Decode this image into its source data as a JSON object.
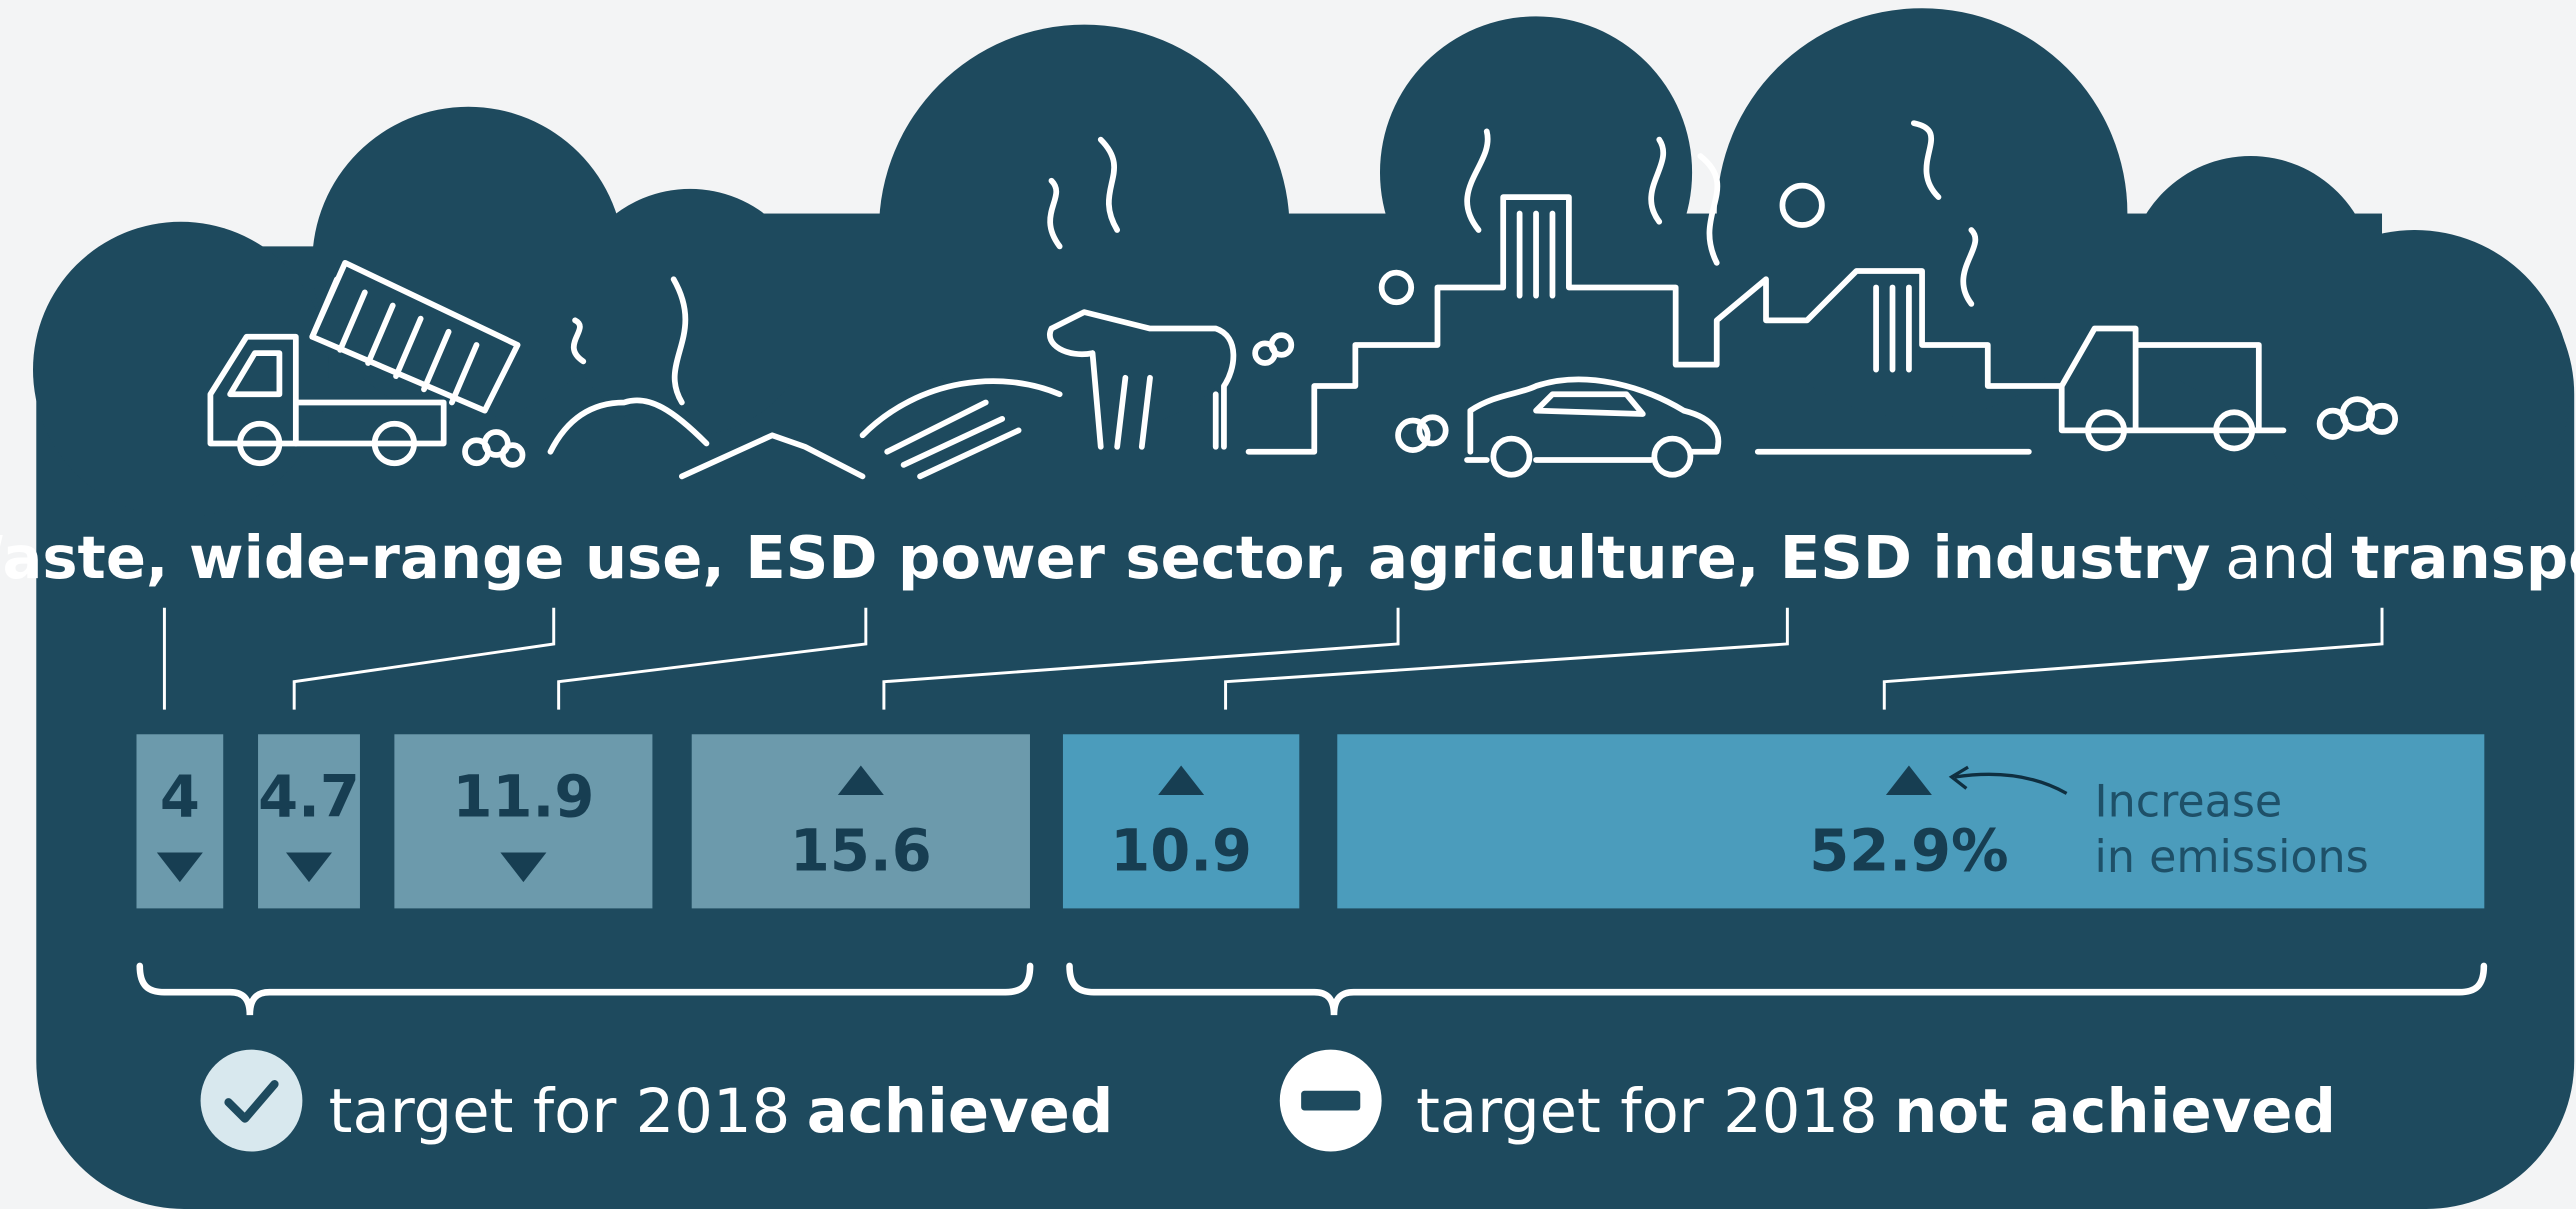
{
  "title_parts": [
    {
      "text": "Waste, wide-range use, ESD power sector, agriculture, ESD industry",
      "bold": true
    },
    {
      "text": "and",
      "bold": false
    },
    {
      "text": "transport",
      "bold": true
    }
  ],
  "items": [
    {
      "value": 4,
      "direction": "down",
      "achieved": true
    },
    {
      "value": 4.7,
      "direction": "down",
      "achieved": true
    },
    {
      "value": 11.9,
      "direction": "down",
      "achieved": true
    },
    {
      "value": 15.6,
      "direction": "up",
      "achieved": true
    },
    {
      "value": 10.9,
      "direction": "up",
      "achieved": false
    },
    {
      "value": 52.9,
      "value_label": "52.9%",
      "direction": "up",
      "achieved": false
    }
  ],
  "annotation": [
    "Increase",
    "in emissions"
  ],
  "legend": [
    {
      "text": "target for 2018",
      "bold_text": "achieved"
    },
    {
      "text": "target for 2018",
      "bold_text": "not achieved"
    }
  ]
}
